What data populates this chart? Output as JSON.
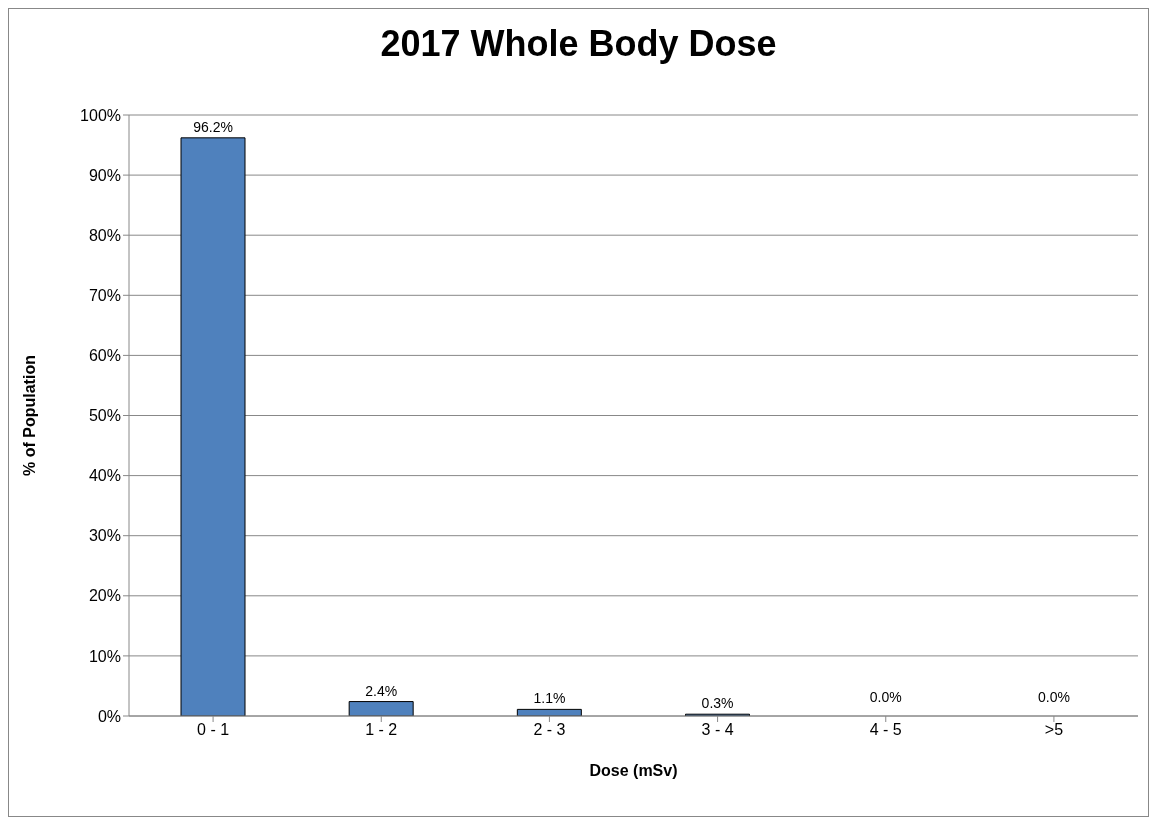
{
  "chart_data": {
    "type": "bar",
    "title": "2017 Whole Body Dose",
    "xlabel": "Dose (mSv)",
    "ylabel": "% of Population",
    "categories": [
      "0 - 1",
      "1 - 2",
      "2 - 3",
      "3 - 4",
      "4 - 5",
      ">5"
    ],
    "values": [
      96.2,
      2.4,
      1.1,
      0.3,
      0.0,
      0.0
    ],
    "value_labels": [
      "96.2%",
      "2.4%",
      "1.1%",
      "0.3%",
      "0.0%",
      "0.0%"
    ],
    "color": "#4f81bd",
    "ylim": [
      0,
      100
    ],
    "yticks": [
      {
        "value": 0,
        "label": "0%"
      },
      {
        "value": 10,
        "label": "10%"
      },
      {
        "value": 20,
        "label": "20%"
      },
      {
        "value": 30,
        "label": "30%"
      },
      {
        "value": 40,
        "label": "40%"
      },
      {
        "value": 50,
        "label": "50%"
      },
      {
        "value": 60,
        "label": "60%"
      },
      {
        "value": 70,
        "label": "70%"
      },
      {
        "value": 80,
        "label": "80%"
      },
      {
        "value": 90,
        "label": "90%"
      },
      {
        "value": 100,
        "label": "100%"
      }
    ],
    "grid": "y"
  }
}
